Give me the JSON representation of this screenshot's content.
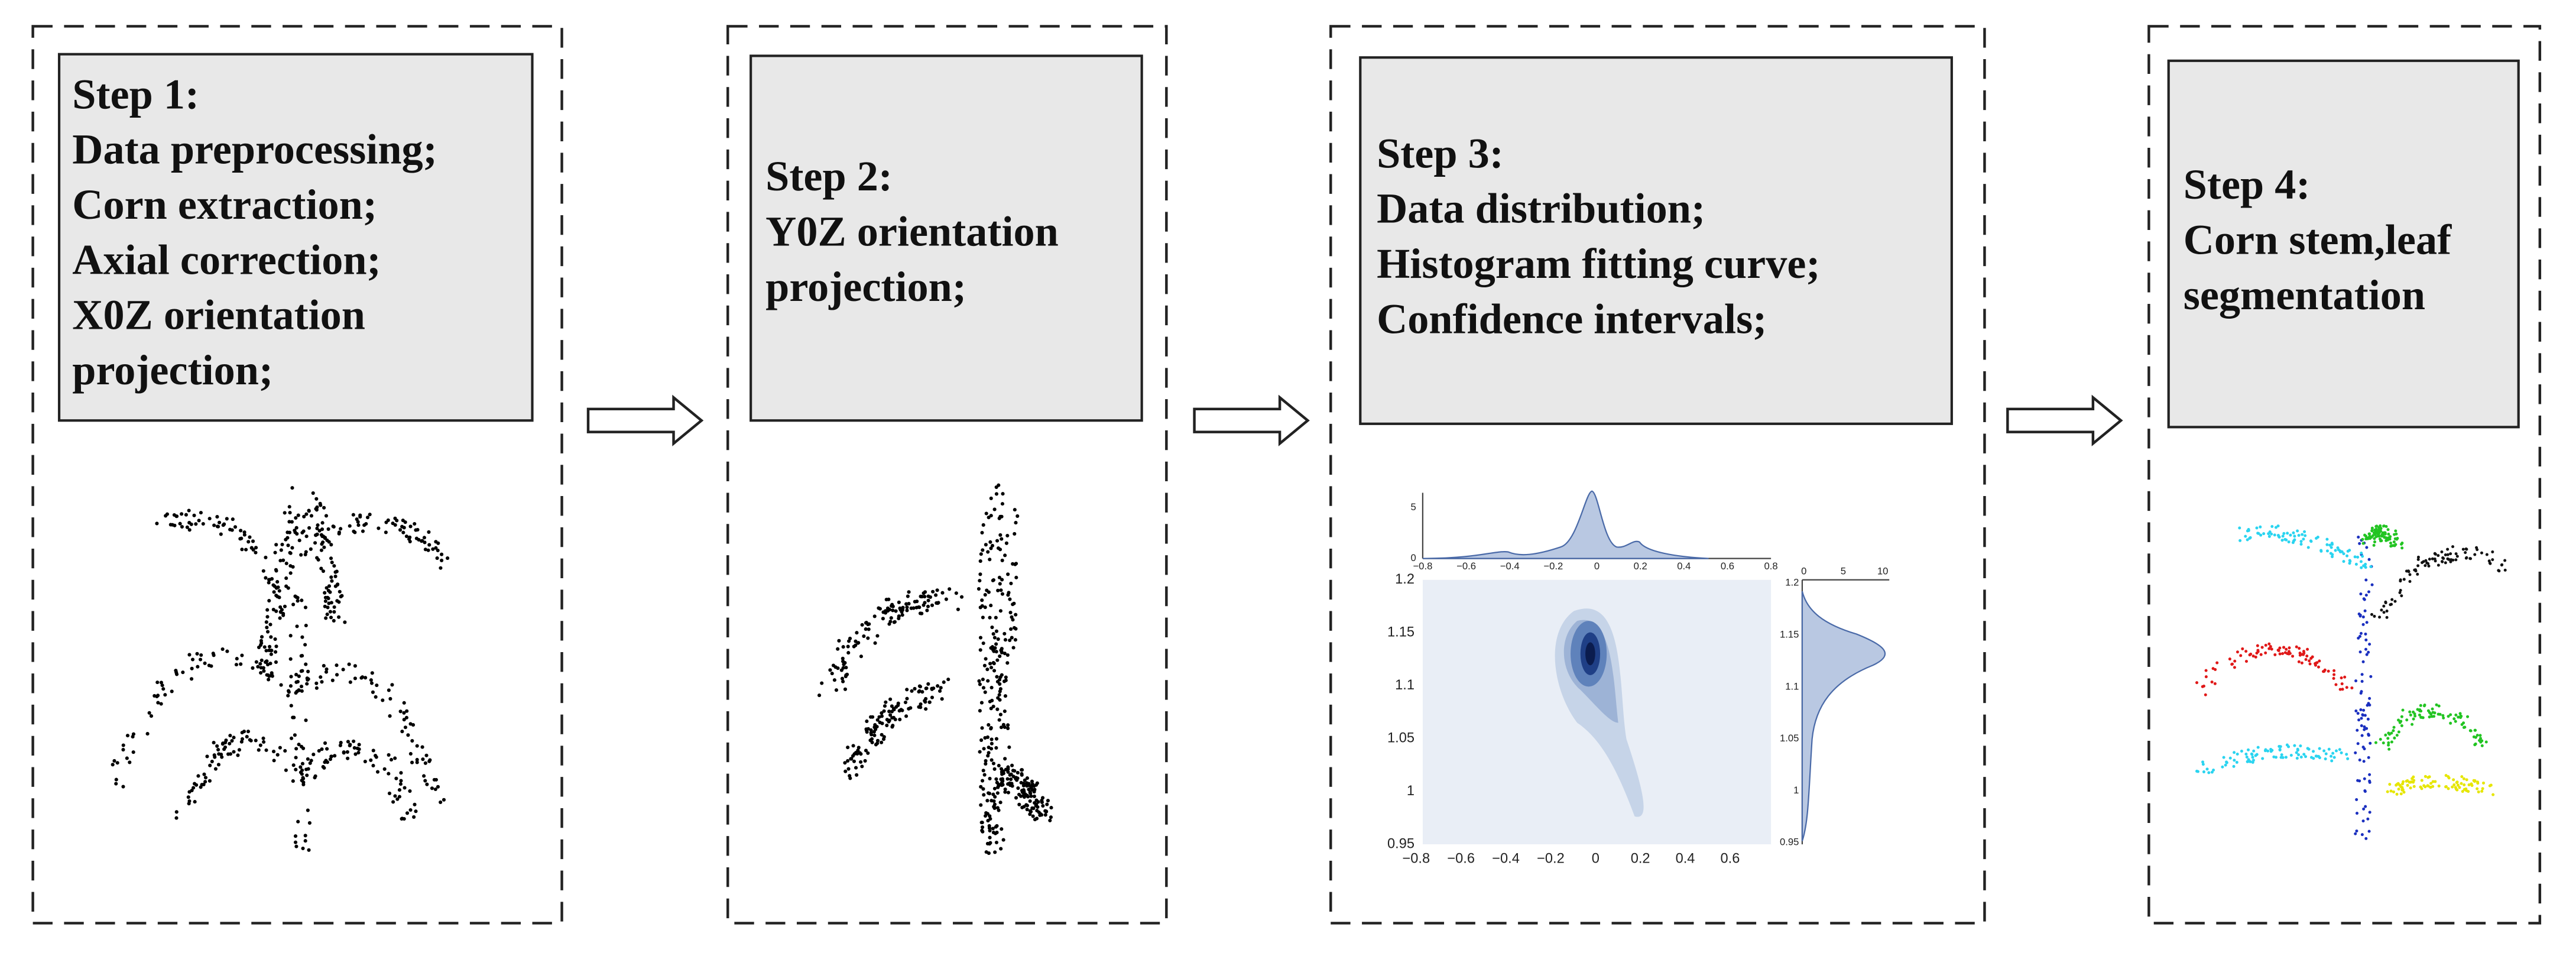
{
  "steps": [
    {
      "lines": [
        "Step 1:",
        "Data preprocessing;",
        "Corn extraction;",
        "Axial correction;",
        "X0Z orientation",
        "projection;"
      ]
    },
    {
      "lines": [
        "Step 2:",
        "Y0Z orientation",
        "projection;"
      ]
    },
    {
      "lines": [
        "Step 3:",
        "Data distribution;",
        "Histogram fitting curve;",
        "Confidence intervals;"
      ]
    },
    {
      "lines": [
        "Step 4:",
        "Corn stem,leaf",
        "segmentation"
      ]
    }
  ],
  "plot": {
    "x_ticks": [
      "−0.8",
      "−0.6",
      "−0.4",
      "−0.2",
      "0",
      "0.2",
      "0.4",
      "0.6"
    ],
    "y_ticks": [
      "1.2",
      "1.15",
      "1.1",
      "1.05",
      "1",
      "0.95"
    ],
    "top_x_ticks": [
      "−0.8",
      "−0.6",
      "−0.4",
      "−0.2",
      "0",
      "0.2",
      "0.4",
      "0.6",
      "0.8"
    ],
    "top_y_ticks": [
      "5",
      "0"
    ],
    "right_x_ticks": [
      "0",
      "5",
      "10"
    ],
    "right_y_ticks": [
      "1.2",
      "1.15",
      "1.1",
      "1.05",
      "1",
      "0.95"
    ]
  }
}
